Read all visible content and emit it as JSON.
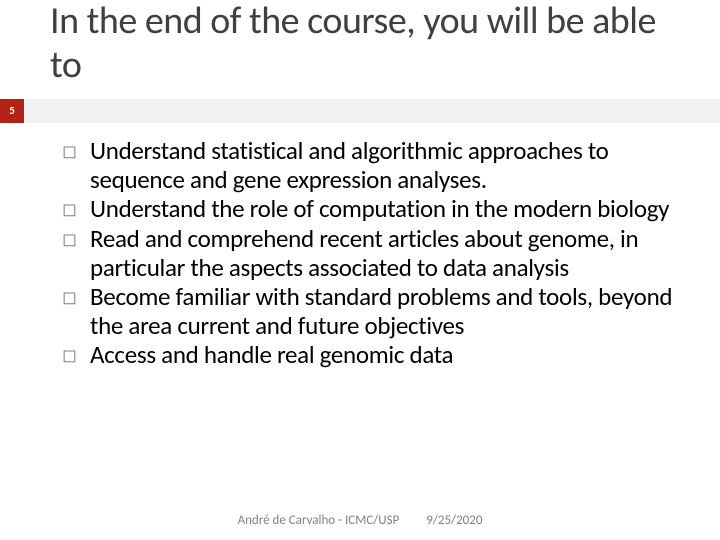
{
  "title": "In the end of the course, you will be able to",
  "page_number": "5",
  "bullets": [
    "Understand statistical and algorithmic approaches to sequence and gene expression analyses.",
    "Understand the role of computation in the modern biology",
    "Read and comprehend recent articles about genome, in particular the aspects associated to data analysis",
    "Become familiar with standard problems and tools, beyond the area current and future objectives",
    "Access and handle real genomic data"
  ],
  "footer_author": "André de Carvalho - ICMC/USP",
  "footer_date": "9/25/2020",
  "colors": {
    "title": "#404040",
    "badge_bg": "#b32317",
    "bullet_glyph": "#808080",
    "body_text": "#000000",
    "deco_bar": "#f2f2f2",
    "footer_text": "#808080"
  }
}
